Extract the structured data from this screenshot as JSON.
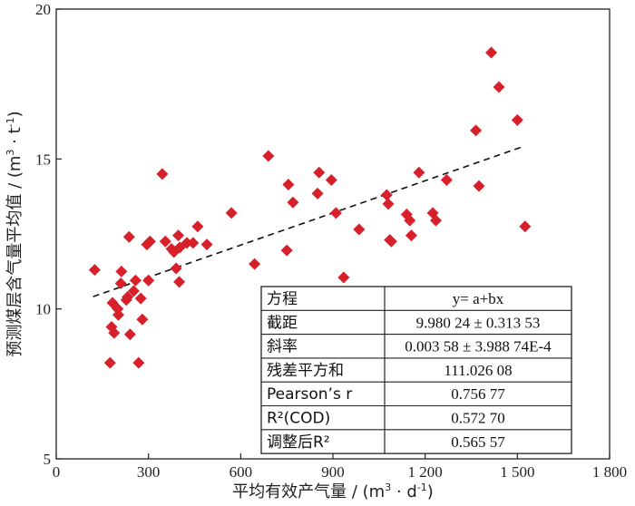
{
  "chart_data": {
    "type": "scatter",
    "xlabel_text": "平均有效产气量 / (m",
    "xlabel_sup1": "3",
    "xlabel_mid": " · d",
    "xlabel_sup2": "-1",
    "xlabel_end": ")",
    "ylabel_text": "预测煤层含气量平均值 / (m",
    "ylabel_sup1": "3",
    "ylabel_mid": " · t",
    "ylabel_sup2": "-1",
    "ylabel_end": ")",
    "xlim": [
      0,
      1800
    ],
    "ylim": [
      5,
      20
    ],
    "x_ticks": [
      0,
      300,
      600,
      900,
      1200,
      1500,
      1800
    ],
    "x_tick_labels": [
      "0",
      "300",
      "600",
      "900",
      "1 200",
      "1 500",
      "1 800"
    ],
    "y_ticks": [
      5,
      10,
      15,
      20
    ],
    "y_tick_labels": [
      "5",
      "10",
      "15",
      "20"
    ],
    "marker_color": "#d7202a",
    "trend_line": {
      "x": [
        120,
        1520
      ],
      "y": [
        10.41,
        15.42
      ],
      "style": "dashed"
    },
    "points": [
      {
        "x": 125,
        "y": 11.3
      },
      {
        "x": 175,
        "y": 8.2
      },
      {
        "x": 180,
        "y": 9.4
      },
      {
        "x": 183,
        "y": 10.2
      },
      {
        "x": 188,
        "y": 9.2
      },
      {
        "x": 200,
        "y": 10.0
      },
      {
        "x": 202,
        "y": 9.8
      },
      {
        "x": 210,
        "y": 10.85
      },
      {
        "x": 212,
        "y": 11.25
      },
      {
        "x": 228,
        "y": 10.3
      },
      {
        "x": 232,
        "y": 10.4
      },
      {
        "x": 237,
        "y": 12.4
      },
      {
        "x": 240,
        "y": 9.15
      },
      {
        "x": 252,
        "y": 10.6
      },
      {
        "x": 258,
        "y": 10.95
      },
      {
        "x": 268,
        "y": 8.2
      },
      {
        "x": 275,
        "y": 10.35
      },
      {
        "x": 280,
        "y": 9.65
      },
      {
        "x": 295,
        "y": 12.15
      },
      {
        "x": 300,
        "y": 10.95
      },
      {
        "x": 305,
        "y": 12.25
      },
      {
        "x": 345,
        "y": 14.5
      },
      {
        "x": 355,
        "y": 12.25
      },
      {
        "x": 375,
        "y": 12.0
      },
      {
        "x": 383,
        "y": 11.9
      },
      {
        "x": 390,
        "y": 11.35
      },
      {
        "x": 397,
        "y": 12.45
      },
      {
        "x": 400,
        "y": 10.9
      },
      {
        "x": 402,
        "y": 12.05
      },
      {
        "x": 425,
        "y": 12.2
      },
      {
        "x": 445,
        "y": 12.2
      },
      {
        "x": 460,
        "y": 12.75
      },
      {
        "x": 490,
        "y": 12.15
      },
      {
        "x": 570,
        "y": 13.2
      },
      {
        "x": 645,
        "y": 11.5
      },
      {
        "x": 690,
        "y": 15.1
      },
      {
        "x": 750,
        "y": 11.95
      },
      {
        "x": 755,
        "y": 14.15
      },
      {
        "x": 770,
        "y": 13.55
      },
      {
        "x": 850,
        "y": 13.85
      },
      {
        "x": 855,
        "y": 14.55
      },
      {
        "x": 895,
        "y": 14.3
      },
      {
        "x": 910,
        "y": 13.2
      },
      {
        "x": 935,
        "y": 11.05
      },
      {
        "x": 985,
        "y": 12.65
      },
      {
        "x": 1075,
        "y": 13.8
      },
      {
        "x": 1080,
        "y": 13.5
      },
      {
        "x": 1085,
        "y": 12.3
      },
      {
        "x": 1090,
        "y": 12.25
      },
      {
        "x": 1140,
        "y": 13.15
      },
      {
        "x": 1150,
        "y": 12.95
      },
      {
        "x": 1155,
        "y": 12.45
      },
      {
        "x": 1180,
        "y": 14.55
      },
      {
        "x": 1225,
        "y": 13.2
      },
      {
        "x": 1235,
        "y": 12.95
      },
      {
        "x": 1270,
        "y": 14.3
      },
      {
        "x": 1365,
        "y": 15.95
      },
      {
        "x": 1375,
        "y": 14.1
      },
      {
        "x": 1415,
        "y": 18.55
      },
      {
        "x": 1440,
        "y": 17.4
      },
      {
        "x": 1500,
        "y": 16.3
      },
      {
        "x": 1525,
        "y": 12.75
      }
    ],
    "stats_table": {
      "rows": [
        [
          "方程",
          "y= a+bx"
        ],
        [
          "截距",
          "9.980 24 ± 0.313 53"
        ],
        [
          "斜率",
          "0.003 58 ± 3.988 74E-4"
        ],
        [
          "残差平方和",
          "111.026 08"
        ],
        [
          "Pearson’s r",
          "0.756 77"
        ],
        [
          "R²(COD)",
          "0.572 70"
        ],
        [
          "调整后R²",
          "0.565 57"
        ]
      ]
    }
  }
}
